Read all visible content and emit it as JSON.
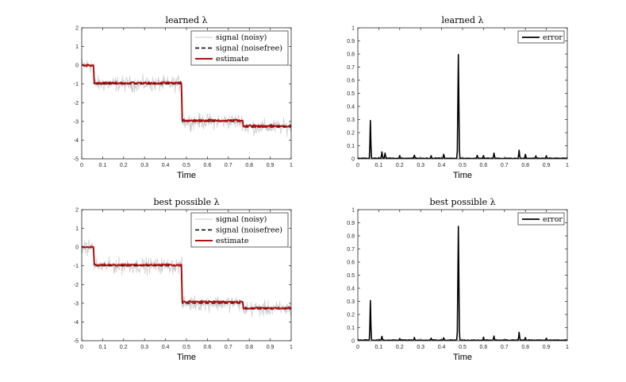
{
  "chart_data": [
    {
      "type": "line",
      "panel": "top-left",
      "title": "learned λ",
      "xlabel": "Time",
      "ylabel": "",
      "xlim": [
        0,
        1
      ],
      "ylim": [
        -5,
        2
      ],
      "xticks": [
        "0",
        "0.1",
        "0.2",
        "0.3",
        "0.4",
        "0.5",
        "0.6",
        "0.7",
        "0.8",
        "0.9",
        "1"
      ],
      "yticks": [
        "-5",
        "-4",
        "-3",
        "-2",
        "-1",
        "0",
        "1",
        "2"
      ],
      "legend": {
        "position": "top-right",
        "entries": [
          "signal (noisy)",
          "signal (noisefree)",
          "estimate"
        ]
      },
      "series": [
        {
          "name": "signal (noisy)",
          "color": "#c8c8c8",
          "noise": 0.35,
          "segments": [
            [
              0,
              0.06,
              0
            ],
            [
              0.06,
              0.48,
              -1
            ],
            [
              0.48,
              0.77,
              -3
            ],
            [
              0.77,
              1,
              -3.3
            ]
          ]
        },
        {
          "name": "signal (noisefree)",
          "color": "#000000",
          "style": "dashed",
          "segments": [
            [
              0,
              0.06,
              0
            ],
            [
              0.06,
              0.48,
              -1
            ],
            [
              0.48,
              0.77,
              -3
            ],
            [
              0.77,
              1,
              -3.3
            ]
          ]
        },
        {
          "name": "estimate",
          "color": "#b01010",
          "noise": 0.05,
          "segments": [
            [
              0,
              0.06,
              0
            ],
            [
              0.06,
              0.48,
              -0.95
            ],
            [
              0.48,
              0.77,
              -2.95
            ],
            [
              0.77,
              1,
              -3.25
            ]
          ]
        }
      ]
    },
    {
      "type": "line",
      "panel": "top-right",
      "title": "learned λ",
      "xlabel": "Time",
      "ylabel": "",
      "xlim": [
        0,
        1
      ],
      "ylim": [
        0,
        1
      ],
      "xticks": [
        "0",
        "0.1",
        "0.2",
        "0.3",
        "0.4",
        "0.5",
        "0.6",
        "0.7",
        "0.8",
        "0.9",
        "1"
      ],
      "yticks": [
        "0",
        "0.1",
        "0.2",
        "0.3",
        "0.4",
        "0.5",
        "0.6",
        "0.7",
        "0.8",
        "0.9",
        "1"
      ],
      "legend": {
        "position": "top-right",
        "entries": [
          "error"
        ]
      },
      "series": [
        {
          "name": "error",
          "color": "#000000",
          "spikes": [
            [
              0.06,
              0.29
            ],
            [
              0.115,
              0.05
            ],
            [
              0.13,
              0.04
            ],
            [
              0.2,
              0.02
            ],
            [
              0.27,
              0.025
            ],
            [
              0.35,
              0.02
            ],
            [
              0.41,
              0.03
            ],
            [
              0.48,
              0.79
            ],
            [
              0.57,
              0.02
            ],
            [
              0.6,
              0.02
            ],
            [
              0.65,
              0.04
            ],
            [
              0.77,
              0.06
            ],
            [
              0.8,
              0.03
            ],
            [
              0.85,
              0.02
            ],
            [
              0.9,
              0.02
            ]
          ]
        }
      ]
    },
    {
      "type": "line",
      "panel": "bottom-left",
      "title": "best possible λ",
      "xlabel": "Time",
      "ylabel": "",
      "xlim": [
        0,
        1
      ],
      "ylim": [
        -5,
        2
      ],
      "xticks": [
        "0",
        "0.1",
        "0.2",
        "0.3",
        "0.4",
        "0.5",
        "0.6",
        "0.7",
        "0.8",
        "0.9",
        "1"
      ],
      "yticks": [
        "-5",
        "-4",
        "-3",
        "-2",
        "-1",
        "0",
        "1",
        "2"
      ],
      "legend": {
        "position": "top-right",
        "entries": [
          "signal (noisy)",
          "signal (noisefree)",
          "estimate"
        ]
      },
      "series": [
        {
          "name": "signal (noisy)",
          "color": "#c8c8c8",
          "noise": 0.35,
          "segments": [
            [
              0,
              0.06,
              0
            ],
            [
              0.06,
              0.48,
              -1
            ],
            [
              0.48,
              0.77,
              -3
            ],
            [
              0.77,
              1,
              -3.3
            ]
          ]
        },
        {
          "name": "signal (noisefree)",
          "color": "#000000",
          "style": "dashed",
          "segments": [
            [
              0,
              0.06,
              0
            ],
            [
              0.06,
              0.48,
              -1
            ],
            [
              0.48,
              0.77,
              -3
            ],
            [
              0.77,
              1,
              -3.3
            ]
          ]
        },
        {
          "name": "estimate",
          "color": "#b01010",
          "noise": 0.04,
          "segments": [
            [
              0,
              0.06,
              0
            ],
            [
              0.06,
              0.48,
              -0.95
            ],
            [
              0.48,
              0.77,
              -2.92
            ],
            [
              0.77,
              1,
              -3.25
            ]
          ]
        }
      ]
    },
    {
      "type": "line",
      "panel": "bottom-right",
      "title": "best possible λ",
      "xlabel": "Time",
      "ylabel": "",
      "xlim": [
        0,
        1
      ],
      "ylim": [
        0,
        1
      ],
      "xticks": [
        "0",
        "0.1",
        "0.2",
        "0.3",
        "0.4",
        "0.5",
        "0.6",
        "0.7",
        "0.8",
        "0.9",
        "1"
      ],
      "yticks": [
        "0",
        "0.1",
        "0.2",
        "0.3",
        "0.4",
        "0.5",
        "0.6",
        "0.7",
        "0.8",
        "0.9",
        "1"
      ],
      "legend": {
        "position": "top-right",
        "entries": [
          "error"
        ]
      },
      "series": [
        {
          "name": "error",
          "color": "#000000",
          "spikes": [
            [
              0.06,
              0.3
            ],
            [
              0.115,
              0.03
            ],
            [
              0.2,
              0.015
            ],
            [
              0.27,
              0.02
            ],
            [
              0.35,
              0.015
            ],
            [
              0.41,
              0.02
            ],
            [
              0.48,
              0.87
            ],
            [
              0.6,
              0.02
            ],
            [
              0.65,
              0.03
            ],
            [
              0.77,
              0.06
            ],
            [
              0.8,
              0.02
            ],
            [
              0.9,
              0.015
            ]
          ]
        }
      ]
    }
  ]
}
